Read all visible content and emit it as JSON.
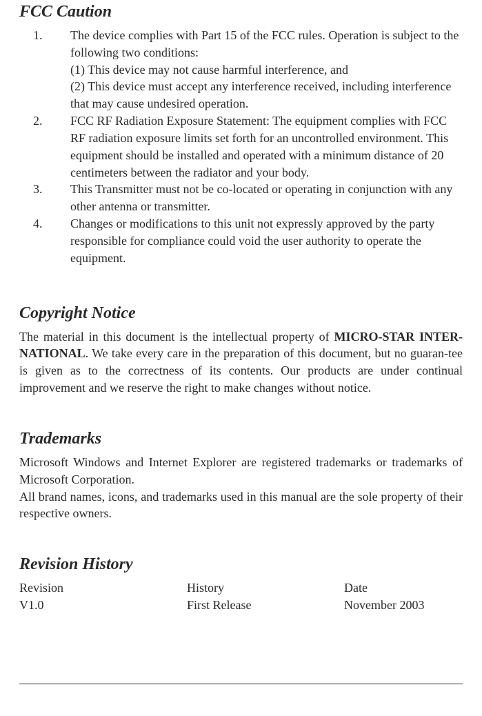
{
  "fcc_caution": {
    "heading": "FCC Caution",
    "items": [
      {
        "num": "1.",
        "text": "The device complies with Part 15 of the FCC rules. Operation is subject to the following two conditions:\n(1) This device may not cause harmful interference, and\n(2) This device must accept any interference received, including interference that may cause undesired operation."
      },
      {
        "num": "2.",
        "text": "FCC RF Radiation Exposure Statement: The equipment complies with FCC RF radiation exposure limits set forth for an uncontrolled environment. This equipment should be installed and operated with a minimum distance of 20 centimeters between the radiator and your body."
      },
      {
        "num": "3.",
        "text": "This Transmitter must not be co-located or operating in conjunction with any other antenna or transmitter."
      },
      {
        "num": "4.",
        "text": "Changes or modifications to this unit not expressly approved by the party responsible for compliance could void the user authority to operate the equipment."
      }
    ]
  },
  "copyright": {
    "heading": "Copyright Notice",
    "company": "MICRO-STAR INTER-NATIONAL",
    "text_before": "The material in this document is the intellectual property of ",
    "text_after": ".  We take every care in the preparation of this document, but no guaran-tee is given as to the correctness of its contents.  Our products are under continual improvement and we reserve the right to make changes without notice."
  },
  "trademarks": {
    "heading": "Trademarks",
    "para1": "Microsoft Windows and Internet Explorer are registered trademarks or trademarks of Microsoft Corporation.",
    "para2": "All brand names, icons, and trademarks used in this manual are the sole property of their respective owners."
  },
  "revision_history": {
    "heading": "Revision History",
    "columns": {
      "revision": {
        "header": "Revision",
        "value": "V1.0"
      },
      "history": {
        "header": "History",
        "value": "First Release"
      },
      "date": {
        "header": "Date",
        "value": "November 2003"
      }
    }
  }
}
